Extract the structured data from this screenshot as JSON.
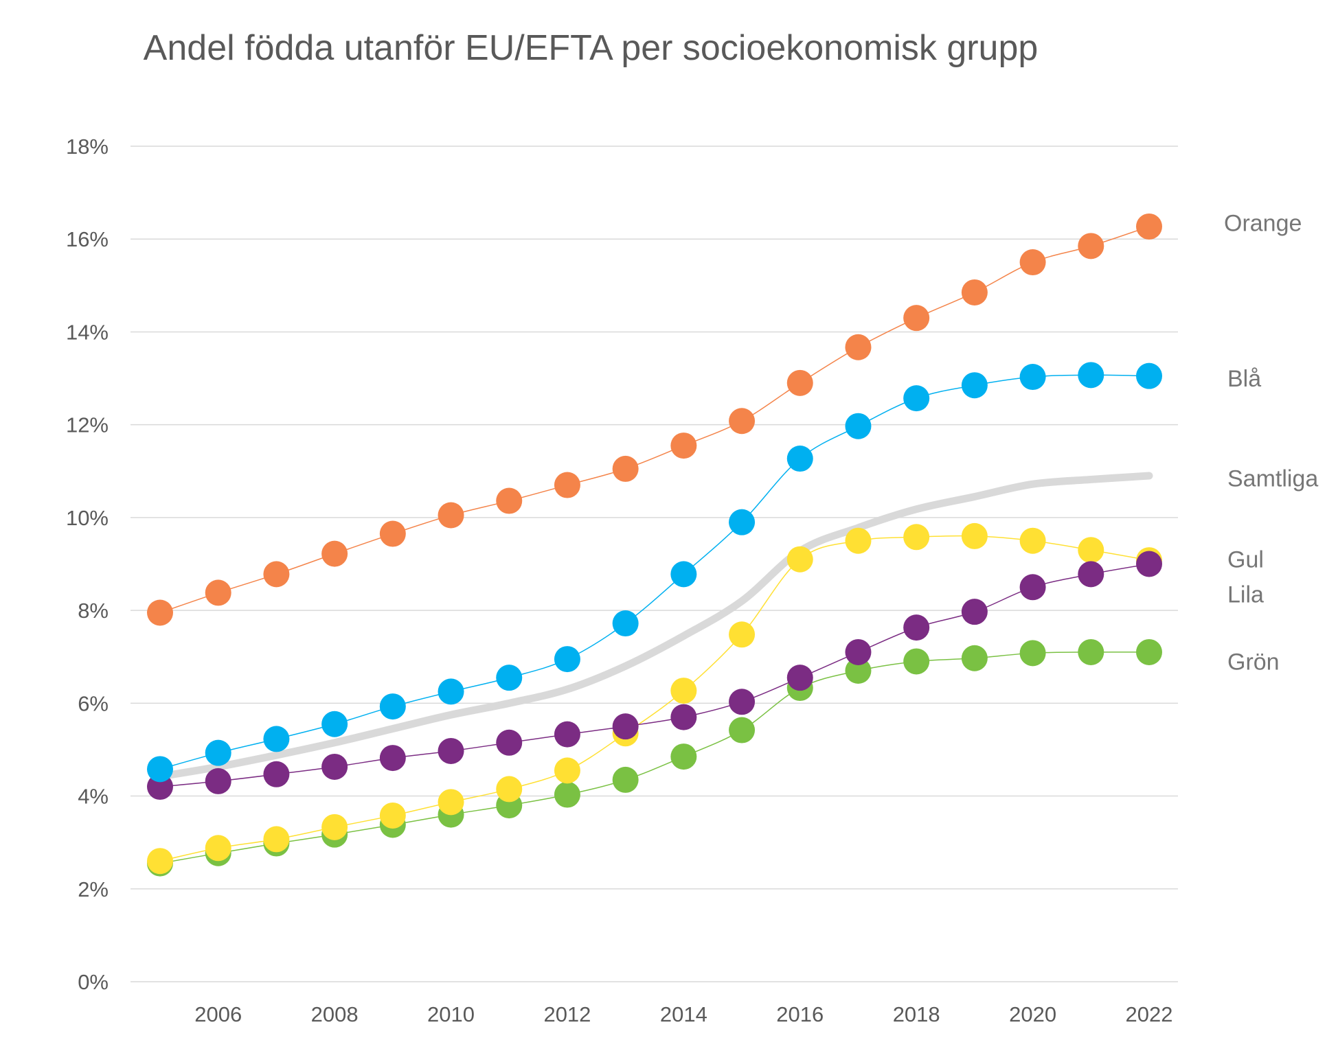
{
  "chart_data": {
    "type": "line",
    "title": "Andel födda utanför EU/EFTA per socioekonomisk grupp",
    "x": [
      2005,
      2006,
      2007,
      2008,
      2009,
      2010,
      2011,
      2012,
      2013,
      2014,
      2015,
      2016,
      2017,
      2018,
      2019,
      2020,
      2021,
      2022
    ],
    "x_tick_labels": [
      "2006",
      "2008",
      "2010",
      "2012",
      "2014",
      "2016",
      "2018",
      "2020",
      "2022"
    ],
    "y_tick_labels": [
      "0%",
      "2%",
      "4%",
      "6%",
      "8%",
      "10%",
      "12%",
      "14%",
      "16%",
      "18%"
    ],
    "ylim": [
      0,
      18
    ],
    "y_unit": "%",
    "grid": "horizontal",
    "legend": "right, labels at line ends",
    "series": [
      {
        "name": "Orange",
        "color": "#F4844A",
        "markers": true,
        "values": [
          7.95,
          8.38,
          8.78,
          9.22,
          9.65,
          10.05,
          10.36,
          10.7,
          11.05,
          11.55,
          12.08,
          12.9,
          13.67,
          14.3,
          14.85,
          15.5,
          15.85,
          16.27
        ]
      },
      {
        "name": "Blå",
        "color": "#00B0F0",
        "markers": true,
        "values": [
          4.58,
          4.93,
          5.23,
          5.55,
          5.93,
          6.25,
          6.55,
          6.95,
          7.72,
          8.78,
          9.9,
          11.27,
          11.97,
          12.57,
          12.85,
          13.03,
          13.07,
          13.05
        ]
      },
      {
        "name": "Samtliga",
        "color": "#D9D9D9",
        "markers": false,
        "values": [
          4.42,
          4.63,
          4.88,
          5.15,
          5.45,
          5.75,
          6.0,
          6.3,
          6.8,
          7.45,
          8.2,
          9.28,
          9.78,
          10.18,
          10.45,
          10.72,
          10.82,
          10.9
        ]
      },
      {
        "name": "Gul",
        "color": "#FFE033",
        "markers": true,
        "values": [
          2.6,
          2.88,
          3.07,
          3.33,
          3.58,
          3.87,
          4.15,
          4.55,
          5.35,
          6.27,
          7.48,
          9.1,
          9.5,
          9.58,
          9.6,
          9.5,
          9.3,
          9.08
        ]
      },
      {
        "name": "Lila",
        "color": "#7B2C83",
        "markers": true,
        "values": [
          4.2,
          4.32,
          4.47,
          4.63,
          4.82,
          4.97,
          5.15,
          5.33,
          5.5,
          5.7,
          6.03,
          6.55,
          7.1,
          7.63,
          7.97,
          8.5,
          8.78,
          9.0
        ]
      },
      {
        "name": "Grön",
        "color": "#7AC143",
        "markers": true,
        "values": [
          2.55,
          2.77,
          2.98,
          3.17,
          3.38,
          3.6,
          3.8,
          4.03,
          4.35,
          4.85,
          5.42,
          6.33,
          6.7,
          6.9,
          6.97,
          7.08,
          7.1,
          7.1
        ]
      }
    ]
  }
}
